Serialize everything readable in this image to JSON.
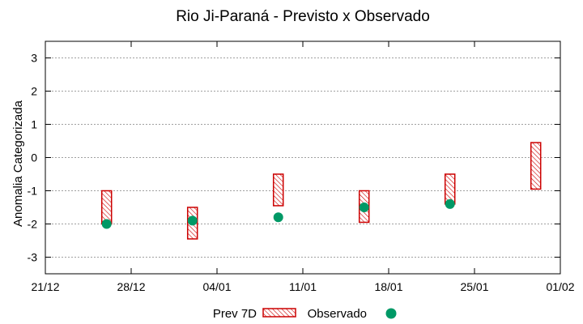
{
  "chart_data": {
    "type": "range-bar-scatter",
    "title": "Rio Ji-Paraná - Previsto x Observado",
    "xlabel": "",
    "ylabel": "Anomalia Categorizada",
    "x_ticks": [
      "21/12",
      "28/12",
      "04/01",
      "11/01",
      "18/01",
      "25/01",
      "01/02"
    ],
    "xlim_days": [
      0,
      42
    ],
    "ylim": [
      -3.5,
      3.5
    ],
    "y_ticks": [
      -3,
      -2,
      -1,
      0,
      1,
      2,
      3
    ],
    "grid": true,
    "legend_position": "bottom",
    "legend": {
      "forecast_label": "Prev 7D",
      "observed_label": "Observado"
    },
    "colors": {
      "forecast": "#cc0000",
      "observed": "#009966",
      "grid": "#a0a0a0"
    },
    "series": [
      {
        "name": "Prev 7D",
        "kind": "range",
        "points": [
          {
            "day": 5,
            "low": -2.0,
            "high": -1.0
          },
          {
            "day": 12,
            "low": -2.45,
            "high": -1.5
          },
          {
            "day": 19,
            "low": -1.45,
            "high": -0.5
          },
          {
            "day": 26,
            "low": -1.95,
            "high": -1.0
          },
          {
            "day": 33,
            "low": -1.4,
            "high": -0.5
          },
          {
            "day": 40,
            "low": -0.95,
            "high": 0.45
          }
        ]
      },
      {
        "name": "Observado",
        "kind": "scatter",
        "points": [
          {
            "day": 5,
            "value": -2.0
          },
          {
            "day": 12,
            "value": -1.9
          },
          {
            "day": 19,
            "value": -1.8
          },
          {
            "day": 26,
            "value": -1.5
          },
          {
            "day": 33,
            "value": -1.4
          }
        ]
      }
    ]
  }
}
